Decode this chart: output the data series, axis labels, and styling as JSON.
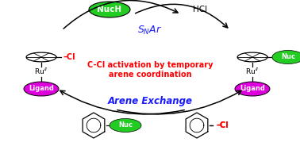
{
  "title_line1": "C-Cl activation by temporary",
  "title_line2": "arene coordination",
  "title_color": "#ff0000",
  "snar_label": "$S_NAr$",
  "snar_color": "#1a1aff",
  "arene_exchange_label": "Arene Exchange",
  "arene_exchange_color": "#1a1aff",
  "nuch_label": "NucH",
  "nuc_label": "Nuc",
  "hcl_label": "HCl",
  "ligand_label": "Ligand",
  "green_color": "#22cc22",
  "magenta_color": "#dd00dd",
  "bg_color": "#ffffff"
}
